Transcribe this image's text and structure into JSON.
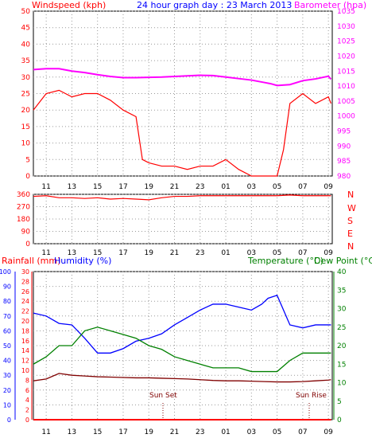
{
  "header": {
    "wind_label": "Windspeed (kph)",
    "title": "24 hour graph day : 23 March 2013",
    "baro_label": "Barometer (hpa)",
    "wind_color": "#ff0000",
    "title_color": "#0000ff",
    "baro_color": "#ff00ff"
  },
  "middle": {
    "compass": [
      "N",
      "W",
      "S",
      "E",
      "N"
    ],
    "compass_color": "#ff0000"
  },
  "bottom": {
    "rain_label": "Rainfall (mm)",
    "humidity_label": "Humidity (%)",
    "temp_label": "Temperature (°C)",
    "dew_label": "Dew Point (°C)",
    "sunset_label": "Sun Set",
    "sunrise_label": "Sun Rise",
    "rain_color": "#ff0000",
    "humidity_color": "#0000ff",
    "temp_color": "#008000",
    "dew_color": "#800000"
  },
  "chart_data": [
    {
      "type": "line",
      "title": "24 hour graph day : 23 March 2013",
      "x_tick_labels": [
        "11",
        "13",
        "15",
        "17",
        "19",
        "21",
        "23",
        "01",
        "03",
        "05",
        "07",
        "09"
      ],
      "y_left": {
        "label": "Windspeed (kph)",
        "range": [
          0,
          50
        ],
        "ticks": [
          0,
          5,
          10,
          15,
          20,
          25,
          30,
          35,
          40,
          45,
          50
        ]
      },
      "y_right": {
        "label": "Barometer (hpa)",
        "range": [
          980,
          1035
        ],
        "ticks": [
          980,
          985,
          990,
          995,
          1000,
          1005,
          1010,
          1015,
          1020,
          1025,
          1030,
          1035
        ]
      },
      "grid": true,
      "series": [
        {
          "name": "Windspeed (kph)",
          "color": "#ff0000",
          "axis": "left",
          "x": [
            10,
            11,
            12,
            13,
            14,
            15,
            16,
            17,
            18,
            18.5,
            19,
            20,
            21,
            22,
            23,
            24,
            25,
            26,
            27,
            28,
            29,
            29.5,
            30,
            31,
            32,
            33,
            33.2
          ],
          "y": [
            20,
            25,
            26,
            24,
            25,
            25,
            23,
            20,
            18,
            5,
            4,
            3,
            3,
            2,
            3,
            3,
            5,
            2,
            0,
            0,
            0,
            8,
            22,
            25,
            22,
            24,
            22
          ]
        },
        {
          "name": "Barometer (hpa)",
          "color": "#ff00ff",
          "axis": "right",
          "x": [
            10,
            11,
            12,
            13,
            14,
            15,
            16,
            17,
            18,
            19,
            20,
            21,
            22,
            23,
            24,
            25,
            26,
            27,
            28,
            28.5,
            29,
            30,
            31,
            32,
            33,
            33.2
          ],
          "y": [
            1015.5,
            1015.8,
            1015.8,
            1015.0,
            1014.5,
            1013.8,
            1013.2,
            1012.8,
            1012.8,
            1012.9,
            1013.0,
            1013.2,
            1013.4,
            1013.6,
            1013.5,
            1013.0,
            1012.5,
            1012.0,
            1011.2,
            1010.8,
            1010.2,
            1010.5,
            1011.8,
            1012.4,
            1013.3,
            1012.3
          ]
        }
      ]
    },
    {
      "type": "line",
      "y_left": {
        "range": [
          0,
          360
        ],
        "ticks": [
          0,
          90,
          180,
          270,
          360
        ]
      },
      "x_tick_labels": [
        "11",
        "13",
        "15",
        "17",
        "19",
        "21",
        "23",
        "01",
        "03",
        "05",
        "07",
        "09"
      ],
      "series": [
        {
          "name": "Wind direction",
          "color": "#ff0000",
          "x": [
            10,
            11,
            12,
            13,
            14,
            15,
            16,
            17,
            18,
            19,
            20,
            21,
            22,
            23,
            24,
            25,
            26,
            27,
            28,
            29,
            30,
            31,
            32,
            33,
            33.2
          ],
          "y": [
            345,
            350,
            335,
            335,
            330,
            335,
            325,
            330,
            325,
            320,
            335,
            345,
            345,
            350,
            350,
            350,
            350,
            350,
            350,
            350,
            355,
            350,
            350,
            350,
            350
          ]
        }
      ]
    },
    {
      "type": "line",
      "x_tick_labels": [
        "11",
        "13",
        "15",
        "17",
        "19",
        "21",
        "23",
        "01",
        "03",
        "05",
        "07",
        "09"
      ],
      "y_humidity": {
        "label": "Humidity (%)",
        "range": [
          0,
          100
        ],
        "ticks": [
          0,
          10,
          20,
          30,
          40,
          50,
          60,
          70,
          80,
          90,
          100
        ]
      },
      "y_rainfall": {
        "label": "Rainfall (mm)",
        "range": [
          0,
          30
        ],
        "ticks": [
          0,
          2,
          4,
          6,
          8,
          10,
          12,
          14,
          16,
          18,
          20,
          22,
          24,
          26,
          28,
          30
        ]
      },
      "y_right": {
        "label": "Temperature (°C)",
        "range": [
          0,
          40
        ],
        "ticks": [
          0,
          5,
          10,
          15,
          20,
          25,
          30,
          35,
          40
        ]
      },
      "grid": true,
      "annotations": [
        "Sun Set",
        "Sun Rise"
      ],
      "series": [
        {
          "name": "Humidity (%)",
          "color": "#0000ff",
          "axis": "humidity",
          "x": [
            10,
            11,
            12,
            13,
            14,
            15,
            16,
            17,
            18,
            19,
            20,
            21,
            22,
            23,
            24,
            25,
            26,
            27,
            27.8,
            28.3,
            29,
            30,
            31,
            32,
            33,
            33.2
          ],
          "y": [
            72,
            70,
            65,
            64,
            55,
            45,
            45,
            48,
            53,
            55,
            58,
            64,
            69,
            74,
            78,
            78,
            76,
            74,
            78,
            82,
            84,
            64,
            62,
            64,
            64,
            64
          ]
        },
        {
          "name": "Temperature (°C)",
          "color": "#008000",
          "axis": "right",
          "x": [
            10,
            11,
            12,
            13,
            14,
            15,
            16,
            17,
            18,
            19,
            20,
            21,
            22,
            23,
            24,
            25,
            26,
            27,
            28,
            29,
            30,
            31,
            32,
            33,
            33.2
          ],
          "y": [
            15,
            17,
            20,
            20,
            24,
            25,
            24,
            23,
            22,
            20,
            19,
            17,
            16,
            15,
            14,
            14,
            14,
            13,
            13,
            13,
            16,
            18,
            18,
            18,
            18
          ]
        },
        {
          "name": "Dew Point (°C)",
          "color": "#800000",
          "axis": "right",
          "x": [
            10,
            11,
            12,
            13,
            14,
            15,
            16,
            17,
            18,
            19,
            20,
            21,
            22,
            23,
            24,
            25,
            26,
            27,
            28,
            29,
            30,
            31,
            32,
            33,
            33.2
          ],
          "y": [
            10.5,
            11,
            12.5,
            12,
            11.8,
            11.6,
            11.5,
            11.4,
            11.3,
            11.3,
            11.2,
            11.1,
            11,
            10.8,
            10.6,
            10.5,
            10.5,
            10.4,
            10.3,
            10.2,
            10.2,
            10.3,
            10.5,
            10.7,
            10.8
          ]
        },
        {
          "name": "Rainfall (mm)",
          "color": "#ff0000",
          "axis": "rainfall",
          "x": [
            10,
            33.2
          ],
          "y": [
            0,
            0
          ]
        }
      ]
    }
  ]
}
